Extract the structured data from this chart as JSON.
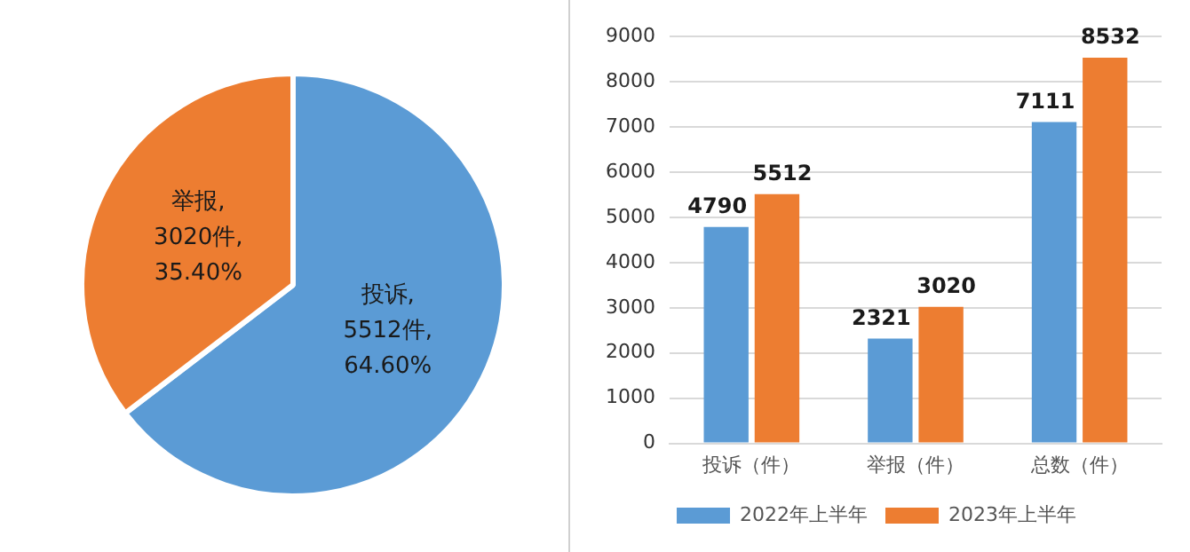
{
  "chart_data": [
    {
      "type": "pie",
      "categories": [
        "投诉",
        "举报"
      ],
      "values": [
        5512,
        3020
      ],
      "colors": [
        "#5b9bd5",
        "#ed7d31"
      ],
      "value_labels": [
        ",5512件,64.60%",
        ",3020件,35.40%"
      ],
      "legend": false
    },
    {
      "type": "bar",
      "categories": [
        "投诉（件）",
        "举报（件）",
        "总数（件）"
      ],
      "series": [
        {
          "name": "2022年上半年",
          "color": "#5b9bd5",
          "values": [
            4790,
            2321,
            7111
          ]
        },
        {
          "name": "2023年上半年",
          "color": "#ed7d31",
          "values": [
            5512,
            3020,
            8532
          ]
        }
      ],
      "ylim": [
        0,
        9000
      ],
      "yticks": [
        0,
        1000,
        2000,
        3000,
        4000,
        5000,
        6000,
        7000,
        8000,
        9000
      ],
      "grid": "y",
      "legend": "bottom",
      "data_labels": true
    }
  ]
}
